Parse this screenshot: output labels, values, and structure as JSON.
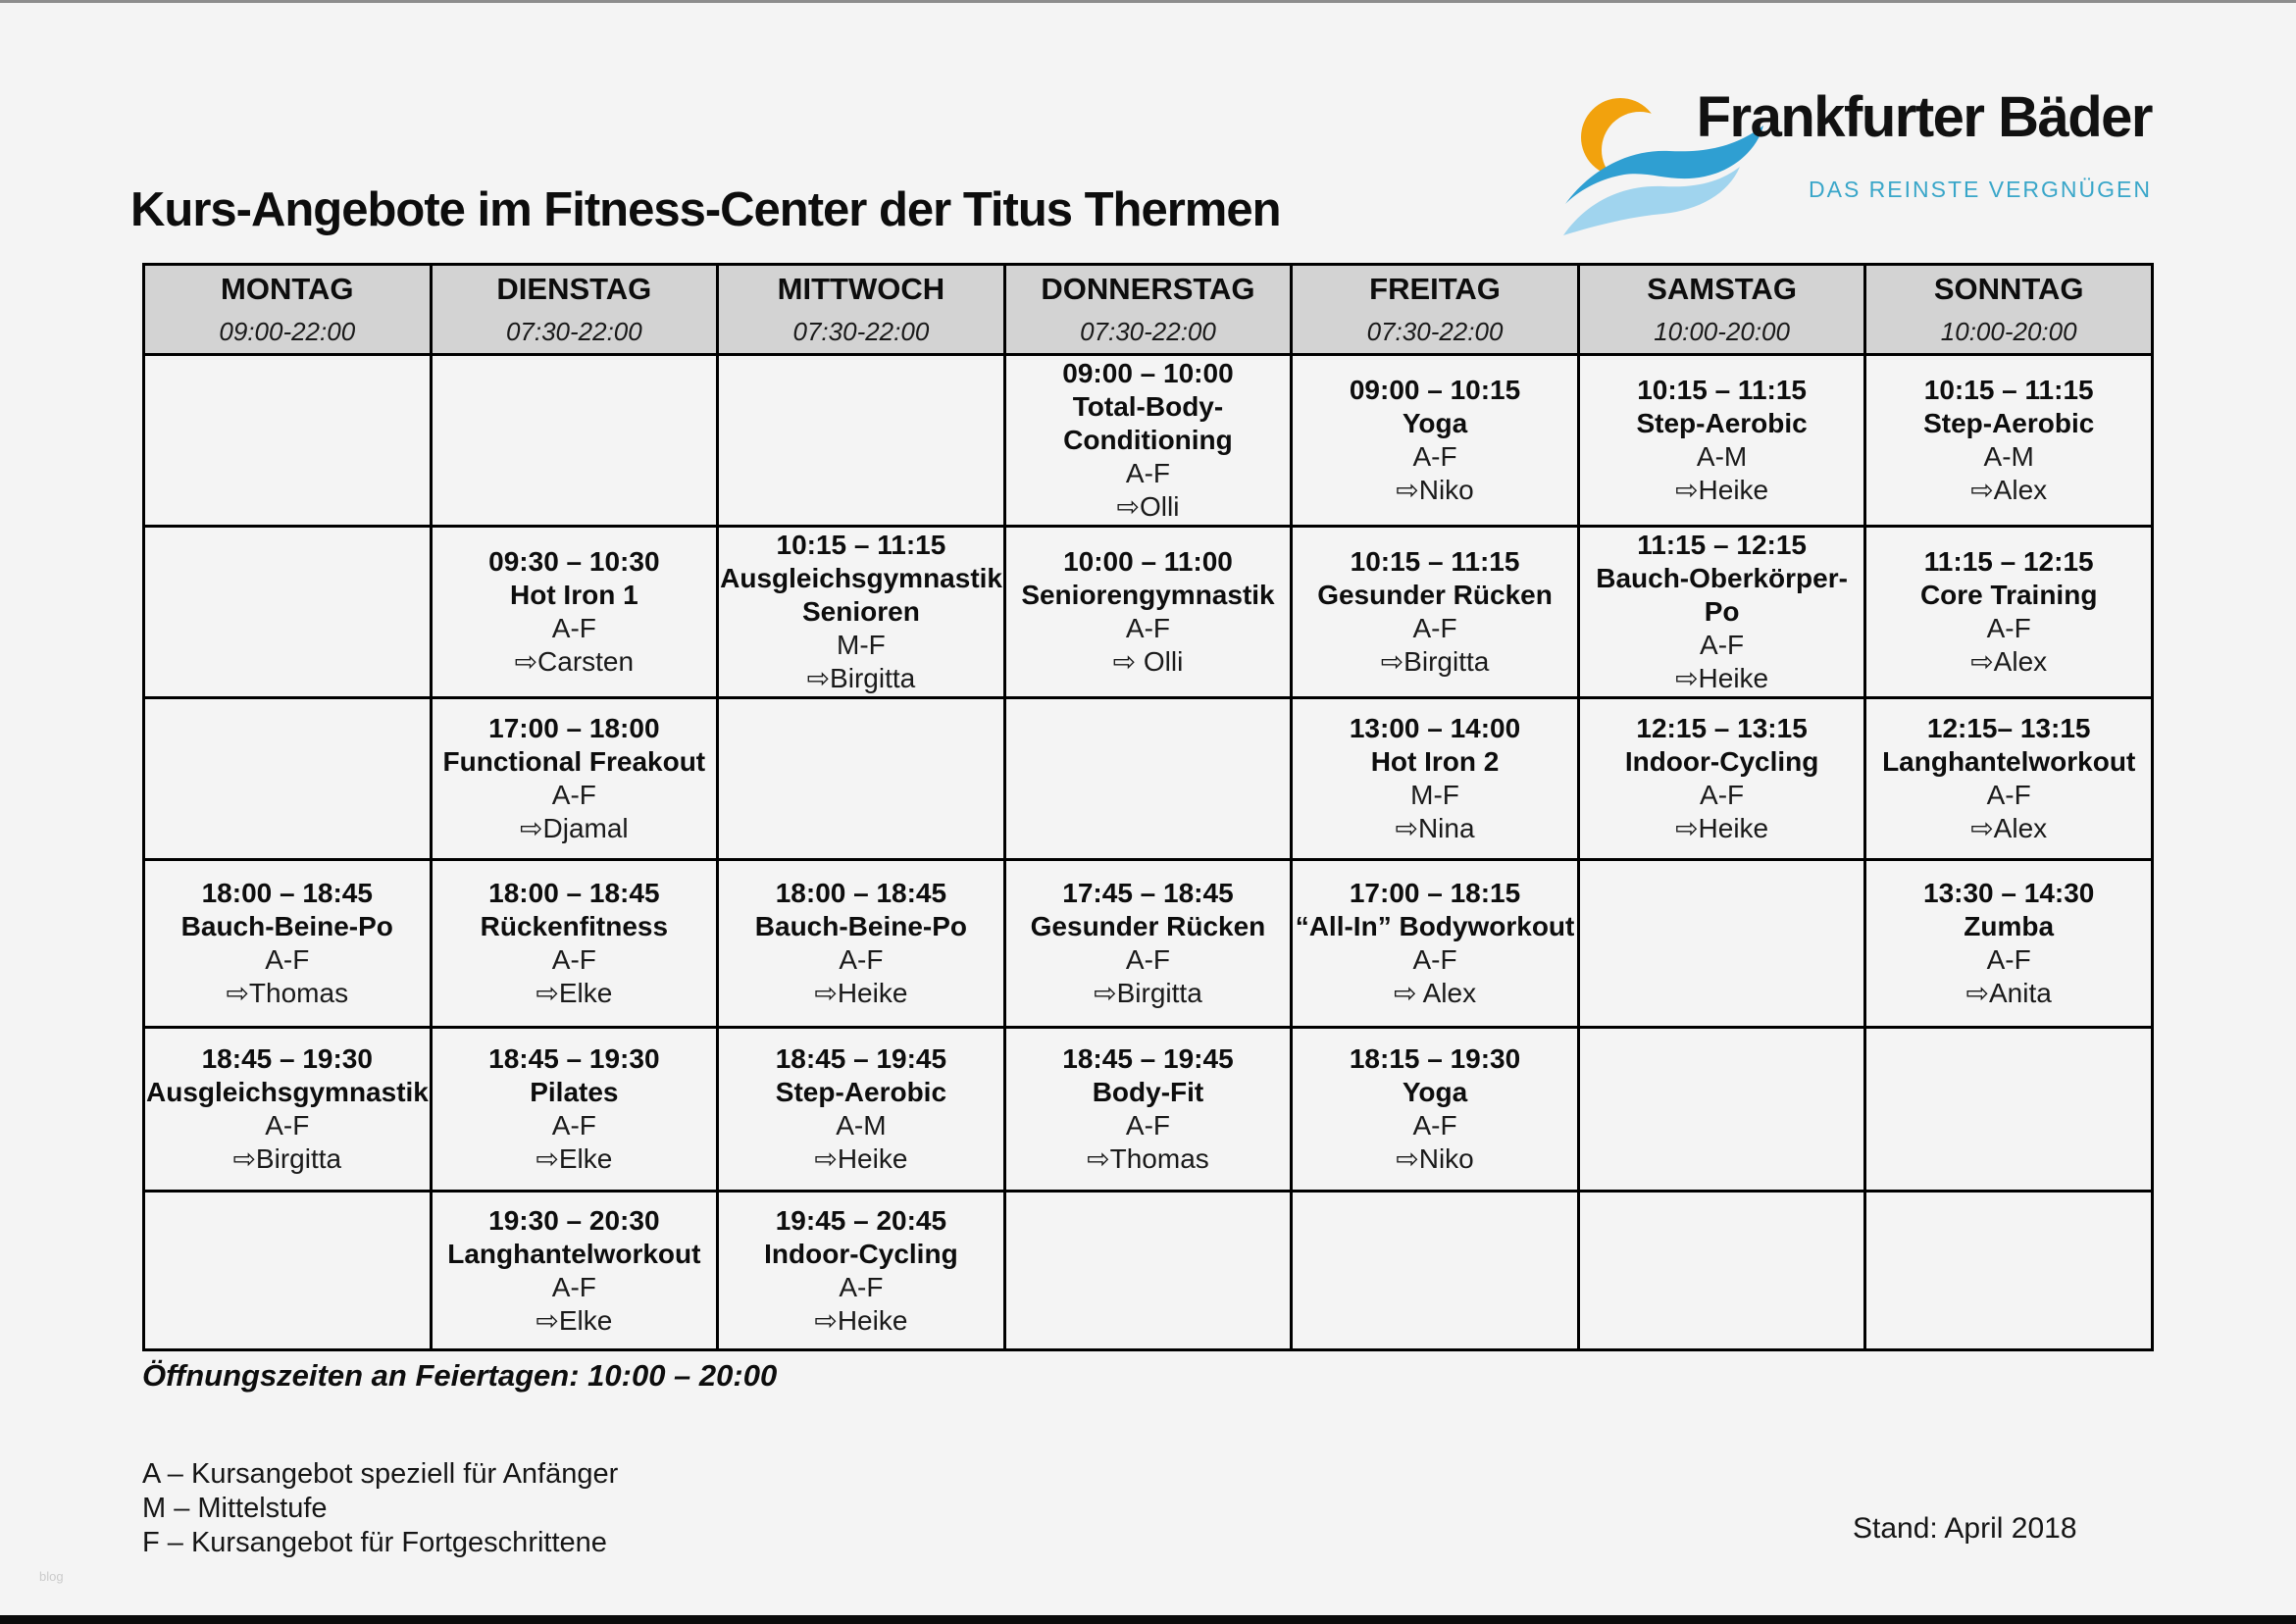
{
  "page": {
    "title": "Kurs-Angebote im Fitness-Center der Titus Thermen",
    "holiday_hours": "Öffnungszeiten an Feiertagen: 10:00 – 20:00",
    "legend": [
      "A – Kursangebot speziell für Anfänger",
      "M – Mittelstufe",
      "F – Kursangebot für Fortgeschrittene"
    ],
    "stand": "Stand: April 2018",
    "watermark": "blog"
  },
  "logo": {
    "name": "Frankfurter Bäder",
    "tagline": "DAS REINSTE VERGNÜGEN",
    "colors": {
      "orange": "#F2A20D",
      "wave_blue": "#2F9FD2",
      "wave_light_blue": "#A0D4EE",
      "tagline_blue": "#39A6C9"
    }
  },
  "schedule": {
    "header_bg": "#D3D3D3",
    "days": [
      {
        "name": "MONTAG",
        "hours": "09:00-22:00"
      },
      {
        "name": "DIENSTAG",
        "hours": "07:30-22:00"
      },
      {
        "name": "MITTWOCH",
        "hours": "07:30-22:00"
      },
      {
        "name": "DONNERSTAG",
        "hours": "07:30-22:00"
      },
      {
        "name": "FREITAG",
        "hours": "07:30-22:00"
      },
      {
        "name": "SAMSTAG",
        "hours": "10:00-20:00"
      },
      {
        "name": "SONNTAG",
        "hours": "10:00-20:00"
      }
    ],
    "rows": [
      [
        null,
        null,
        null,
        {
          "time": "09:00 – 10:00",
          "name": "Total-Body-Conditioning",
          "level": "A-F",
          "trainer": "⇨Olli"
        },
        {
          "time": "09:00 – 10:15",
          "name": "Yoga",
          "level": "A-F",
          "trainer": "⇨Niko"
        },
        {
          "time": "10:15 – 11:15",
          "name": "Step-Aerobic",
          "level": "A-M",
          "trainer": "⇨Heike"
        },
        {
          "time": "10:15 – 11:15",
          "name": "Step-Aerobic",
          "level": "A-M",
          "trainer": "⇨Alex"
        }
      ],
      [
        null,
        {
          "time": "09:30 – 10:30",
          "name": "Hot Iron 1",
          "level": "A-F",
          "trainer": "⇨Carsten"
        },
        {
          "time": "10:15 – 11:15",
          "name": "Ausgleichsgymnastik Senioren",
          "level": "M-F",
          "trainer": "⇨Birgitta"
        },
        {
          "time": "10:00 – 11:00",
          "name": "Seniorengymnastik",
          "level": "A-F",
          "trainer": "⇨ Olli"
        },
        {
          "time": "10:15 – 11:15",
          "name": "Gesunder Rücken",
          "level": "A-F",
          "trainer": "⇨Birgitta"
        },
        {
          "time": "11:15 – 12:15",
          "name": "Bauch-Oberkörper-Po",
          "level": "A-F",
          "trainer": "⇨Heike"
        },
        {
          "time": "11:15 – 12:15",
          "name": "Core Training",
          "level": "A-F",
          "trainer": "⇨Alex"
        }
      ],
      [
        null,
        {
          "time": "17:00 – 18:00",
          "name": "Functional Freakout",
          "level": "A-F",
          "trainer": "⇨Djamal"
        },
        null,
        null,
        {
          "time": "13:00 – 14:00",
          "name": "Hot Iron 2",
          "level": "M-F",
          "trainer": "⇨Nina"
        },
        {
          "time": "12:15 – 13:15",
          "name": "Indoor-Cycling",
          "level": "A-F",
          "trainer": "⇨Heike"
        },
        {
          "time": "12:15– 13:15",
          "name": "Langhantelworkout",
          "level": "A-F",
          "trainer": "⇨Alex"
        }
      ],
      [
        {
          "time": "18:00 – 18:45",
          "name": "Bauch-Beine-Po",
          "level": "A-F",
          "trainer": "⇨Thomas"
        },
        {
          "time": "18:00 – 18:45",
          "name": "Rückenfitness",
          "level": "A-F",
          "trainer": "⇨Elke"
        },
        {
          "time": "18:00 – 18:45",
          "name": "Bauch-Beine-Po",
          "level": "A-F",
          "trainer": "⇨Heike"
        },
        {
          "time": "17:45 – 18:45",
          "name": "Gesunder Rücken",
          "level": "A-F",
          "trainer": "⇨Birgitta"
        },
        {
          "time": "17:00 – 18:15",
          "name": "“All-In” Bodyworkout",
          "level": "A-F",
          "trainer": "⇨ Alex"
        },
        null,
        {
          "time": "13:30 – 14:30",
          "name": "Zumba",
          "level": "A-F",
          "trainer": "⇨Anita"
        }
      ],
      [
        {
          "time": "18:45 – 19:30",
          "name": "Ausgleichsgymnastik",
          "level": "A-F",
          "trainer": "⇨Birgitta"
        },
        {
          "time": "18:45 – 19:30",
          "name": "Pilates",
          "level": "A-F",
          "trainer": "⇨Elke"
        },
        {
          "time": "18:45 – 19:45",
          "name": "Step-Aerobic",
          "level": "A-M",
          "trainer": "⇨Heike"
        },
        {
          "time": "18:45 – 19:45",
          "name": "Body-Fit",
          "level": "A-F",
          "trainer": "⇨Thomas"
        },
        {
          "time": "18:15 – 19:30",
          "name": "Yoga",
          "level": "A-F",
          "trainer": "⇨Niko"
        },
        null,
        null
      ],
      [
        null,
        {
          "time": "19:30 – 20:30",
          "name": "Langhantelworkout",
          "level": "A-F",
          "trainer": "⇨Elke"
        },
        {
          "time": "19:45 – 20:45",
          "name": "Indoor-Cycling",
          "level": "A-F",
          "trainer": "⇨Heike"
        },
        null,
        null,
        null,
        null
      ]
    ]
  }
}
